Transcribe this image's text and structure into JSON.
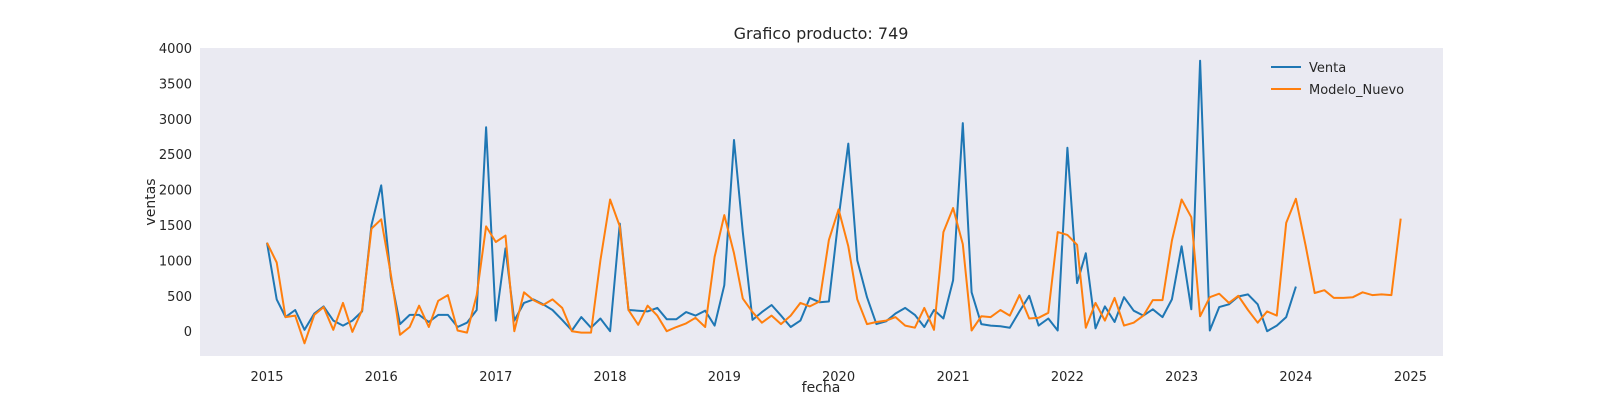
{
  "chart_data": {
    "type": "line",
    "title": "Grafico producto: 749",
    "xlabel": "fecha",
    "ylabel": "ventas",
    "xlim": [
      "2014-06-01",
      "2025-04-15"
    ],
    "ylim": [
      -350,
      4000
    ],
    "y_ticks": [
      0,
      500,
      1000,
      1500,
      2000,
      2500,
      3000,
      3500,
      4000
    ],
    "x_ticks": [
      "2015",
      "2016",
      "2017",
      "2018",
      "2019",
      "2020",
      "2021",
      "2022",
      "2023",
      "2024",
      "2025"
    ],
    "grid": false,
    "legend_position": "top-right",
    "series": [
      {
        "name": "Venta",
        "color": "#1f77b4",
        "start": "2015-01",
        "values": [
          1250,
          450,
          200,
          300,
          20,
          250,
          350,
          150,
          80,
          150,
          280,
          1500,
          2060,
          750,
          100,
          230,
          230,
          130,
          230,
          230,
          60,
          120,
          300,
          2880,
          150,
          1170,
          150,
          400,
          450,
          380,
          300,
          160,
          10,
          200,
          50,
          180,
          0,
          1520,
          300,
          290,
          280,
          330,
          170,
          170,
          270,
          220,
          290,
          80,
          650,
          2700,
          1400,
          160,
          270,
          370,
          220,
          60,
          150,
          470,
          410,
          420,
          1600,
          2650,
          1000,
          480,
          100,
          140,
          250,
          330,
          230,
          60,
          300,
          180,
          720,
          2940,
          550,
          100,
          80,
          70,
          50,
          280,
          500,
          80,
          180,
          10,
          2590,
          680,
          1100,
          40,
          350,
          130,
          480,
          290,
          220,
          310,
          200,
          450,
          1200,
          310,
          3820,
          10,
          340,
          380,
          490,
          520,
          380,
          0,
          80,
          200,
          630
        ]
      },
      {
        "name": "Modelo_Nuevo",
        "color": "#ff7f0e",
        "start": "2015-01",
        "values": [
          1250,
          970,
          200,
          220,
          -170,
          230,
          340,
          20,
          400,
          -10,
          300,
          1450,
          1580,
          800,
          -50,
          60,
          360,
          60,
          430,
          510,
          10,
          -20,
          510,
          1480,
          1260,
          1350,
          0,
          550,
          440,
          370,
          450,
          330,
          0,
          -20,
          -20,
          1000,
          1860,
          1480,
          300,
          90,
          360,
          220,
          0,
          60,
          110,
          190,
          60,
          1050,
          1640,
          1100,
          460,
          270,
          120,
          220,
          100,
          220,
          400,
          350,
          420,
          1290,
          1720,
          1200,
          450,
          100,
          130,
          150,
          200,
          80,
          50,
          330,
          20,
          1400,
          1740,
          1230,
          10,
          210,
          200,
          300,
          220,
          510,
          180,
          190,
          260,
          1400,
          1360,
          1220,
          50,
          400,
          150,
          470,
          80,
          120,
          220,
          440,
          440,
          1280,
          1860,
          1610,
          210,
          480,
          530,
          400,
          500,
          300,
          120,
          280,
          220,
          1530,
          1870,
          1210,
          540,
          580,
          470,
          470,
          480,
          550,
          510,
          520,
          510,
          1590
        ]
      }
    ]
  }
}
